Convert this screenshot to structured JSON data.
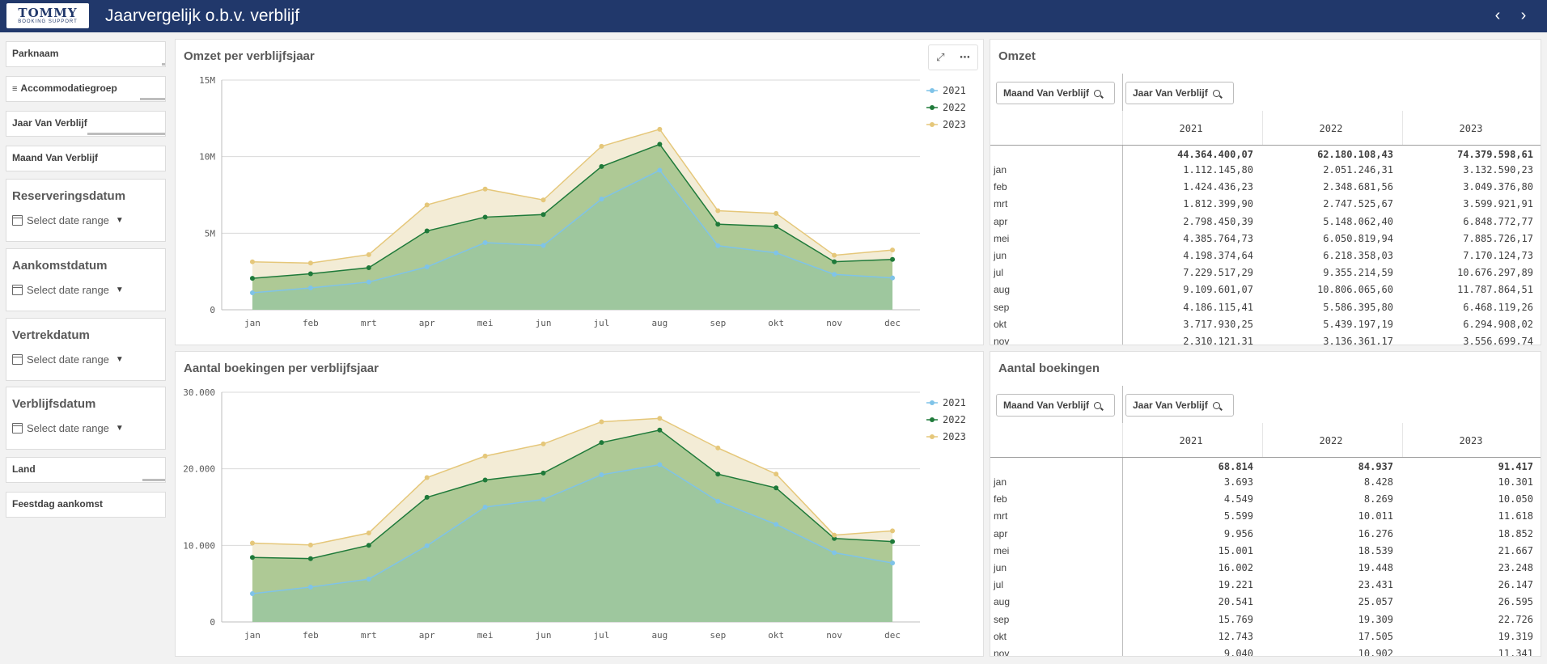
{
  "app": {
    "logo_text": "TOMMY",
    "logo_subtext": "BOOKING SUPPORT",
    "title": "Jaarvergelijk o.b.v. verblijf",
    "prev_icon": "chevron-left-icon",
    "next_icon": "chevron-right-icon",
    "header_color": "#21386b"
  },
  "filters": {
    "simple": [
      "Parknaam",
      "Accommodatiegroep",
      "Jaar Van Verblijf",
      "Maand Van Verblijf",
      "Land",
      "Feestdag aankomst"
    ],
    "dates": [
      {
        "label": "Reserveringsdatum",
        "placeholder": "Select date range"
      },
      {
        "label": "Aankomstdatum",
        "placeholder": "Select date range"
      },
      {
        "label": "Vertrekdatum",
        "placeholder": "Select date range"
      },
      {
        "label": "Verblijfsdatum",
        "placeholder": "Select date range"
      }
    ]
  },
  "chart_data": [
    {
      "type": "area",
      "title": "Omzet per verblijfsjaar",
      "categories": [
        "jan",
        "feb",
        "mrt",
        "apr",
        "mei",
        "jun",
        "jul",
        "aug",
        "sep",
        "okt",
        "nov",
        "dec"
      ],
      "y_tick_labels": [
        "0",
        "5M",
        "10M",
        "15M"
      ],
      "ylim": [
        0,
        15000000
      ],
      "grid": true,
      "legend_position": "top-right",
      "series": [
        {
          "name": "2021",
          "color": "#7fc3e8",
          "values": [
            1112145.8,
            1424436.23,
            1812399.9,
            2798450.39,
            4385764.73,
            4198374.64,
            7229517.29,
            9109601.07,
            4186115.41,
            3717930.25,
            2310121.31,
            2080000
          ]
        },
        {
          "name": "2022",
          "color": "#1f7a3a",
          "values": [
            2051246.31,
            2348681.56,
            2747525.67,
            5148062.4,
            6050819.94,
            6218358.03,
            9355214.59,
            10806065.6,
            5586395.8,
            5439197.19,
            3136361.17,
            3290000
          ]
        },
        {
          "name": "2023",
          "color": "#e5c77a",
          "values": [
            3132590.23,
            3049376.8,
            3599921.91,
            6848772.77,
            7885726.17,
            7170124.73,
            10676297.89,
            11787864.51,
            6468119.26,
            6294908.02,
            3556699.74,
            3900000
          ]
        }
      ]
    },
    {
      "type": "area",
      "title": "Aantal boekingen per verblijfsjaar",
      "categories": [
        "jan",
        "feb",
        "mrt",
        "apr",
        "mei",
        "jun",
        "jul",
        "aug",
        "sep",
        "okt",
        "nov",
        "dec"
      ],
      "y_tick_labels": [
        "0",
        "10.000",
        "20.000",
        "30.000"
      ],
      "ylim": [
        0,
        30000
      ],
      "grid": true,
      "legend_position": "top-right",
      "series": [
        {
          "name": "2021",
          "color": "#7fc3e8",
          "values": [
            3693,
            4549,
            5599,
            9956,
            15001,
            16002,
            19221,
            20541,
            15769,
            12743,
            9040,
            7700
          ]
        },
        {
          "name": "2022",
          "color": "#1f7a3a",
          "values": [
            8428,
            8269,
            10011,
            16276,
            18539,
            19448,
            23431,
            25057,
            19309,
            17505,
            10902,
            10500
          ]
        },
        {
          "name": "2023",
          "color": "#e5c77a",
          "values": [
            10301,
            10050,
            11618,
            18852,
            21667,
            23248,
            26147,
            26595,
            22726,
            19319,
            11341,
            11900
          ]
        }
      ]
    }
  ],
  "tables": [
    {
      "title": "Omzet",
      "search_buttons": [
        "Maand Van Verblijf",
        "Jaar Van Verblijf"
      ],
      "columns": [
        "2021",
        "2022",
        "2023"
      ],
      "totals": [
        "44.364.400,07",
        "62.180.108,43",
        "74.379.598,61"
      ],
      "rows": [
        {
          "label": "jan",
          "values": [
            "1.112.145,80",
            "2.051.246,31",
            "3.132.590,23"
          ]
        },
        {
          "label": "feb",
          "values": [
            "1.424.436,23",
            "2.348.681,56",
            "3.049.376,80"
          ]
        },
        {
          "label": "mrt",
          "values": [
            "1.812.399,90",
            "2.747.525,67",
            "3.599.921,91"
          ]
        },
        {
          "label": "apr",
          "values": [
            "2.798.450,39",
            "5.148.062,40",
            "6.848.772,77"
          ]
        },
        {
          "label": "mei",
          "values": [
            "4.385.764,73",
            "6.050.819,94",
            "7.885.726,17"
          ]
        },
        {
          "label": "jun",
          "values": [
            "4.198.374,64",
            "6.218.358,03",
            "7.170.124,73"
          ]
        },
        {
          "label": "jul",
          "values": [
            "7.229.517,29",
            "9.355.214,59",
            "10.676.297,89"
          ]
        },
        {
          "label": "aug",
          "values": [
            "9.109.601,07",
            "10.806.065,60",
            "11.787.864,51"
          ]
        },
        {
          "label": "sep",
          "values": [
            "4.186.115,41",
            "5.586.395,80",
            "6.468.119,26"
          ]
        },
        {
          "label": "okt",
          "values": [
            "3.717.930,25",
            "5.439.197,19",
            "6.294.908,02"
          ]
        },
        {
          "label": "nov",
          "values": [
            "2.310.121,31",
            "3.136.361,17",
            "3.556.699,74"
          ]
        }
      ]
    },
    {
      "title": "Aantal boekingen",
      "search_buttons": [
        "Maand Van Verblijf",
        "Jaar Van Verblijf"
      ],
      "columns": [
        "2021",
        "2022",
        "2023"
      ],
      "totals": [
        "68.814",
        "84.937",
        "91.417"
      ],
      "rows": [
        {
          "label": "jan",
          "values": [
            "3.693",
            "8.428",
            "10.301"
          ]
        },
        {
          "label": "feb",
          "values": [
            "4.549",
            "8.269",
            "10.050"
          ]
        },
        {
          "label": "mrt",
          "values": [
            "5.599",
            "10.011",
            "11.618"
          ]
        },
        {
          "label": "apr",
          "values": [
            "9.956",
            "16.276",
            "18.852"
          ]
        },
        {
          "label": "mei",
          "values": [
            "15.001",
            "18.539",
            "21.667"
          ]
        },
        {
          "label": "jun",
          "values": [
            "16.002",
            "19.448",
            "23.248"
          ]
        },
        {
          "label": "jul",
          "values": [
            "19.221",
            "23.431",
            "26.147"
          ]
        },
        {
          "label": "aug",
          "values": [
            "20.541",
            "25.057",
            "26.595"
          ]
        },
        {
          "label": "sep",
          "values": [
            "15.769",
            "19.309",
            "22.726"
          ]
        },
        {
          "label": "okt",
          "values": [
            "12.743",
            "17.505",
            "19.319"
          ]
        },
        {
          "label": "nov",
          "values": [
            "9.040",
            "10.902",
            "11.341"
          ]
        }
      ]
    }
  ]
}
